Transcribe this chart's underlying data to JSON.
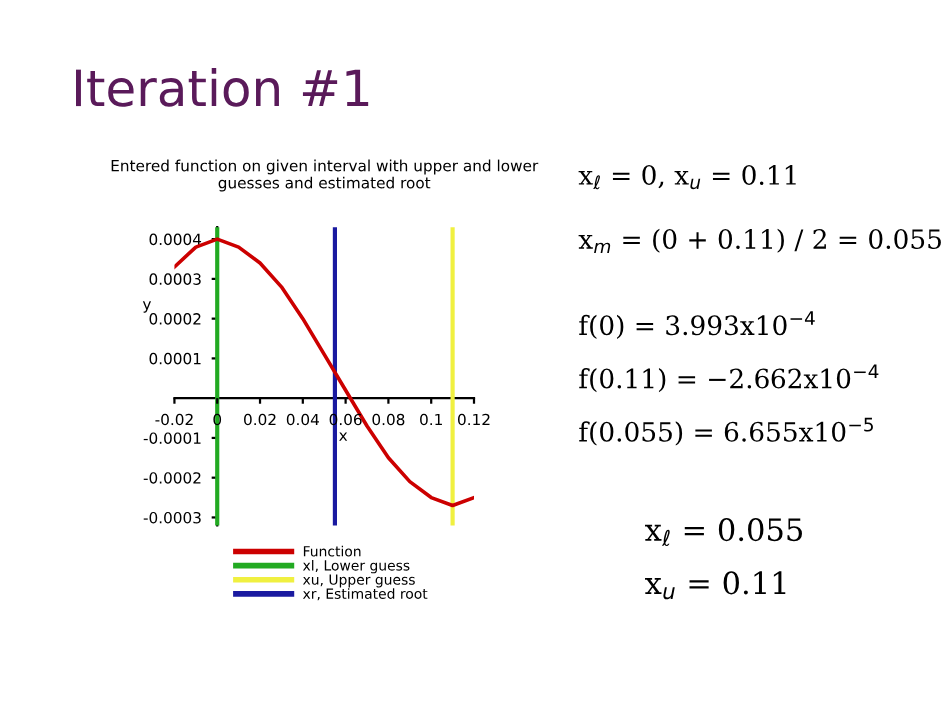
{
  "chart_data": {
    "type": "line",
    "title": "Entered function on given interval with upper and lower\nguesses and estimated root",
    "xlabel": "x",
    "ylabel": "y",
    "series": [
      {
        "name": "Function",
        "color": "#cc0000",
        "x": [
          -0.02,
          -0.01,
          0,
          0.01,
          0.02,
          0.03,
          0.04,
          0.05,
          0.06,
          0.07,
          0.08,
          0.09,
          0.1,
          0.11,
          0.12
        ],
        "values": [
          0.00033,
          0.00038,
          0.0004,
          0.00038,
          0.00034,
          0.00028,
          0.0002,
          0.00011,
          2e-05,
          -7e-05,
          -0.00015,
          -0.00021,
          -0.00025,
          -0.00027,
          -0.00025
        ]
      }
    ],
    "ref_lines": [
      {
        "axis": "x",
        "value": 0,
        "label": "xl, Lower guess",
        "color": "#22aa22"
      },
      {
        "axis": "x",
        "value": 0.11,
        "label": "xu, Upper guess",
        "color": "#f0f040"
      },
      {
        "axis": "x",
        "value": 0.055,
        "label": "xr, Estimated root",
        "color": "#1a1aa0"
      }
    ],
    "xlim": [
      -0.02,
      0.12
    ],
    "ylim": [
      -0.00032,
      0.00043
    ],
    "xticks": [
      -0.02,
      0,
      0.02,
      0.04,
      0.06,
      0.08,
      0.1,
      0.12
    ],
    "yticks": [
      -0.0003,
      -0.0002,
      -0.0001,
      0.0001,
      0.0002,
      0.0003,
      0.0004
    ],
    "legend": "bottom",
    "grid": false,
    "marker": "none",
    "line_style": "solid",
    "annotations": [
      "Iteration #1",
      "x$_{ℓ}$ = 0, x$_{u}$ = 0.11",
      "x$_{m}$ = (0 + 0.11) / 2 = 0.055",
      "f(0) = 3.993x10$^{−4}$",
      "f(0.11) = −2.662x10$^{−4}$",
      "f(0.055) = 6.655x10$^{−5}$",
      "x$_{ℓ}$ = 0.055",
      "x$_{u}$ = 0.11"
    ]
  }
}
